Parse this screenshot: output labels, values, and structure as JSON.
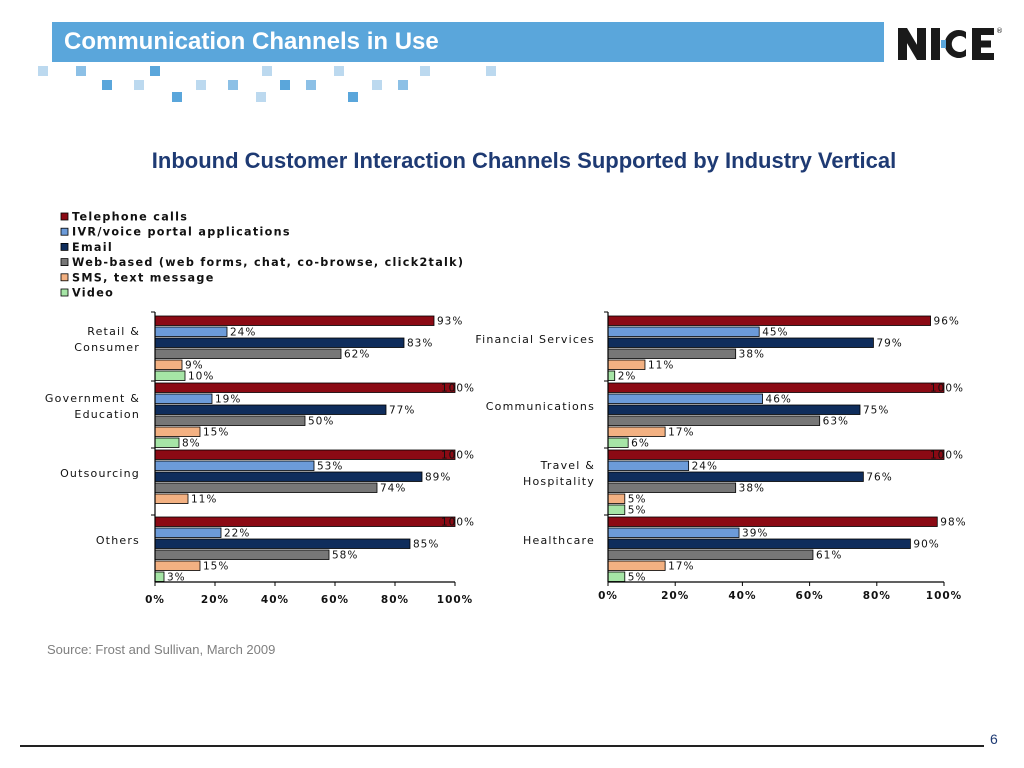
{
  "slide": {
    "title": "Communication Channels in Use",
    "source": "Source: Frost and Sullivan, March 2009",
    "page_number": "6"
  },
  "logo": {
    "name": "NICE",
    "color": "#1a1a1a",
    "accent": "#5aa6db"
  },
  "chart_data": {
    "type": "bar",
    "orientation": "horizontal",
    "title": "Inbound Customer Interaction Channels Supported by Industry Vertical",
    "xlim": [
      0,
      100
    ],
    "ticks": [
      "0%",
      "20%",
      "40%",
      "60%",
      "80%",
      "100%"
    ],
    "legend_position": "top-left",
    "grid": false,
    "series": [
      {
        "name": "Telephone calls",
        "color": "#8b0a14"
      },
      {
        "name": "IVR/voice portal applications",
        "color": "#6c9bd9"
      },
      {
        "name": "Email",
        "color": "#0f2d5c"
      },
      {
        "name": "Web-based (web forms, chat, co-browse, click2talk)",
        "color": "#777777"
      },
      {
        "name": "SMS, text message",
        "color": "#f3b182"
      },
      {
        "name": "Video",
        "color": "#a6e5a6"
      }
    ],
    "panels": [
      {
        "categories": [
          {
            "name": "Retail & Consumer",
            "lines": [
              "Retail &",
              "Consumer"
            ],
            "values": [
              93,
              24,
              83,
              62,
              9,
              10
            ],
            "labels": [
              "93%",
              "24%",
              "83%",
              "62%",
              "9%",
              "10%"
            ]
          },
          {
            "name": "Government & Education",
            "lines": [
              "Government &",
              "Education"
            ],
            "values": [
              100,
              19,
              77,
              50,
              15,
              8
            ],
            "labels": [
              "100%",
              "19%",
              "77%",
              "50%",
              "15%",
              "8%"
            ]
          },
          {
            "name": "Outsourcing",
            "lines": [
              "Outsourcing"
            ],
            "values": [
              100,
              53,
              89,
              74,
              11,
              null
            ],
            "labels": [
              "100%",
              "53%",
              "89%",
              "74%",
              "11%",
              null
            ]
          },
          {
            "name": "Others",
            "lines": [
              "Others"
            ],
            "values": [
              100,
              22,
              85,
              58,
              15,
              3
            ],
            "labels": [
              "100%",
              "22%",
              "85%",
              "58%",
              "15%",
              "3%"
            ]
          }
        ]
      },
      {
        "categories": [
          {
            "name": "Financial Services",
            "lines": [
              "Financial Services"
            ],
            "values": [
              96,
              45,
              79,
              38,
              11,
              2
            ],
            "labels": [
              "96%",
              "45%",
              "79%",
              "38%",
              "11%",
              "2%"
            ]
          },
          {
            "name": "Communications",
            "lines": [
              "Communications"
            ],
            "values": [
              100,
              46,
              75,
              63,
              17,
              6
            ],
            "labels": [
              "100%",
              "46%",
              "75%",
              "63%",
              "17%",
              "6%"
            ]
          },
          {
            "name": "Travel & Hospitality",
            "lines": [
              "Travel &",
              "Hospitality"
            ],
            "values": [
              100,
              24,
              76,
              38,
              5,
              5
            ],
            "labels": [
              "100%",
              "24%",
              "76%",
              "38%",
              "5%",
              "5%"
            ]
          },
          {
            "name": "Healthcare",
            "lines": [
              "Healthcare"
            ],
            "values": [
              98,
              39,
              90,
              61,
              17,
              5
            ],
            "labels": [
              "98%",
              "39%",
              "90%",
              "61%",
              "17%",
              "5%"
            ]
          }
        ]
      }
    ]
  }
}
